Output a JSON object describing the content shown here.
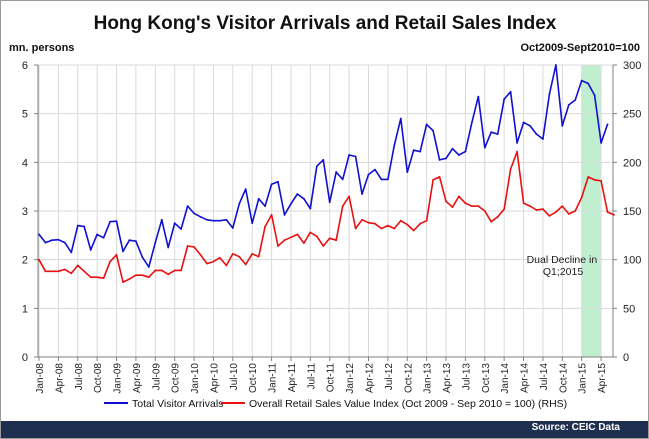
{
  "chart_data": {
    "type": "line",
    "title": "Hong Kong's Visitor Arrivals and Retail Sales Index",
    "ylabel_left": "mn. persons",
    "ylabel_right": "Oct2009-Sept2010=100",
    "ylim_left": [
      0,
      6
    ],
    "ylim_right": [
      0,
      300
    ],
    "yticks_left": [
      "0",
      "1",
      "2",
      "3",
      "4",
      "5",
      "6"
    ],
    "yticks_right": [
      "0",
      "50",
      "100",
      "150",
      "200",
      "250",
      "300"
    ],
    "x_start": "2008-01",
    "x_tick_labels": [
      "Jan-08",
      "Apr-08",
      "Jul-08",
      "Oct-08",
      "Jan-09",
      "Apr-09",
      "Jul-09",
      "Oct-09",
      "Jan-10",
      "Apr-10",
      "Jul-10",
      "Oct-10",
      "Jan-11",
      "Apr-11",
      "Jul-11",
      "Oct-11",
      "Jan-12",
      "Apr-12",
      "Jul-12",
      "Oct-12",
      "Jan-13",
      "Apr-13",
      "Jul-13",
      "Oct-13",
      "Jan-14",
      "Apr-14",
      "Jul-14",
      "Oct-14",
      "Jan-15",
      "Apr-15"
    ],
    "grid": true,
    "legend_position": "bottom",
    "series": [
      {
        "name": "Total Visitor Arrivals",
        "axis": "left",
        "color": "#1010d0",
        "values": [
          2.52,
          2.35,
          2.4,
          2.41,
          2.35,
          2.15,
          2.7,
          2.68,
          2.2,
          2.52,
          2.45,
          2.78,
          2.79,
          2.17,
          2.4,
          2.38,
          2.05,
          1.85,
          2.35,
          2.82,
          2.25,
          2.75,
          2.63,
          3.1,
          2.95,
          2.88,
          2.82,
          2.8,
          2.8,
          2.82,
          2.65,
          3.15,
          3.45,
          2.75,
          3.25,
          3.1,
          3.55,
          3.6,
          2.92,
          3.15,
          3.35,
          3.25,
          3.05,
          3.92,
          4.05,
          3.18,
          3.8,
          3.65,
          4.15,
          4.12,
          3.35,
          3.75,
          3.85,
          3.65,
          3.65,
          4.35,
          4.9,
          3.8,
          4.25,
          4.22,
          4.78,
          4.65,
          4.05,
          4.08,
          4.28,
          4.15,
          4.22,
          4.82,
          5.35,
          4.3,
          4.62,
          4.58,
          5.3,
          5.45,
          4.4,
          4.82,
          4.75,
          4.58,
          4.48,
          5.4,
          6.0,
          4.75,
          5.18,
          5.28,
          5.68,
          5.62,
          5.38,
          4.4,
          4.78
        ]
      },
      {
        "name": "Overall Retail Sales Value Index (Oct 2009 - Sep 2010 = 100) (RHS)",
        "axis": "right",
        "color": "#e81010",
        "values": [
          100,
          88,
          88,
          88,
          90,
          86,
          94,
          88,
          82,
          82,
          81,
          98,
          105,
          77,
          80,
          84,
          84,
          82,
          89,
          89,
          85,
          89,
          89,
          114,
          113,
          105,
          96,
          98,
          102,
          94,
          106,
          103,
          95,
          106,
          103,
          134,
          146,
          114,
          120,
          123,
          126,
          117,
          128,
          124,
          114,
          122,
          120,
          155,
          165,
          132,
          141,
          138,
          137,
          132,
          135,
          132,
          140,
          136,
          130,
          137,
          140,
          182,
          185,
          160,
          154,
          165,
          158,
          155,
          155,
          150,
          139,
          144,
          152,
          193,
          211,
          158,
          155,
          151,
          152,
          145,
          149,
          155,
          147,
          150,
          164,
          185,
          182,
          181,
          149,
          146
        ]
      }
    ],
    "annotation": {
      "text_line1": "Dual Decline in",
      "text_line2": "Q1;2015",
      "highlight_from": "Jan-15",
      "highlight_to": "Mar-15",
      "highlight_color": "#bfefce"
    }
  },
  "footer": {
    "source": "Source: CEIC Data"
  }
}
